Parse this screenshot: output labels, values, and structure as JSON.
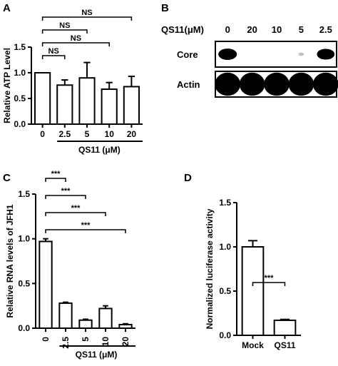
{
  "chart_data": [
    {
      "panel": "A",
      "type": "bar",
      "ylabel": "Relative ATP Level",
      "xlabel": "QS11 (μM)",
      "categories": [
        "0",
        "2.5",
        "5",
        "10",
        "20"
      ],
      "values": [
        1.0,
        0.76,
        0.9,
        0.68,
        0.73
      ],
      "errors": [
        0.0,
        0.1,
        0.3,
        0.13,
        0.2
      ],
      "ylim": [
        0,
        1.5
      ],
      "yticks": [
        "0.0",
        "0.5",
        "1.0",
        "1.5"
      ],
      "significance": [
        {
          "from": "0",
          "to": "2.5",
          "label": "NS"
        },
        {
          "from": "0",
          "to": "10",
          "label": "NS"
        },
        {
          "from": "0",
          "to": "5",
          "label": "NS"
        },
        {
          "from": "0",
          "to": "20",
          "label": "NS"
        }
      ]
    },
    {
      "panel": "C",
      "type": "bar",
      "ylabel": "Relative RNA levels of JFH1",
      "xlabel": "QS11 (μM)",
      "categories": [
        "0",
        "2.5",
        "5",
        "10",
        "20"
      ],
      "values": [
        0.97,
        0.28,
        0.09,
        0.22,
        0.04
      ],
      "errors": [
        0.03,
        0.01,
        0.01,
        0.03,
        0.01
      ],
      "ylim": [
        0,
        1.5
      ],
      "yticks": [
        "0.0",
        "0.5",
        "1.0",
        "1.5"
      ],
      "significance": [
        {
          "from": "0",
          "to": "20",
          "label": "***"
        },
        {
          "from": "0",
          "to": "10",
          "label": "***"
        },
        {
          "from": "0",
          "to": "5",
          "label": "***"
        },
        {
          "from": "0",
          "to": "2.5",
          "label": "***"
        }
      ]
    },
    {
      "panel": "D",
      "type": "bar",
      "ylabel": "Normalized luciferase activity",
      "categories": [
        "Mock",
        "QS11"
      ],
      "values": [
        1.0,
        0.17
      ],
      "errors": [
        0.07,
        0.01
      ],
      "ylim": [
        0,
        1.5
      ],
      "yticks": [
        "0.0",
        "0.5",
        "1.0",
        "1.5"
      ],
      "significance": [
        {
          "from": "Mock",
          "to": "QS11",
          "label": "***"
        }
      ]
    }
  ],
  "blot": {
    "panel": "B",
    "treatment_label": "QS11(μM)",
    "lanes": [
      "0",
      "20",
      "10",
      "5",
      "2.5"
    ],
    "rows": [
      {
        "label": "Core",
        "intensities": [
          1.0,
          0.0,
          0.0,
          0.15,
          0.95
        ]
      },
      {
        "label": "Actin",
        "intensities": [
          1.0,
          1.0,
          1.0,
          1.0,
          1.0
        ]
      }
    ]
  },
  "panels": {
    "A": "A",
    "B": "B",
    "C": "C",
    "D": "D"
  }
}
